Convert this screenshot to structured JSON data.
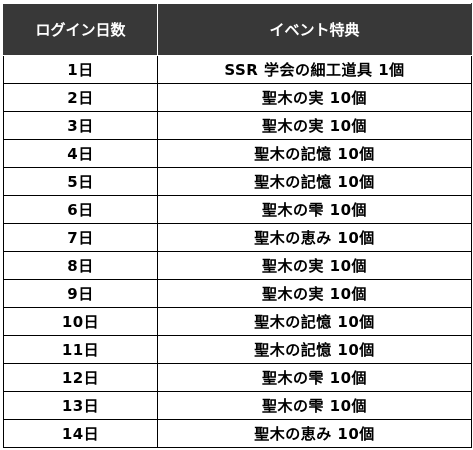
{
  "table": {
    "headers": [
      "ログイン日数",
      "イベント特典"
    ],
    "rows": [
      {
        "day": "1日",
        "reward": "SSR 学会の細工道具 1個"
      },
      {
        "day": "2日",
        "reward": "聖木の実 10個"
      },
      {
        "day": "3日",
        "reward": "聖木の実 10個"
      },
      {
        "day": "4日",
        "reward": "聖木の記憶 10個"
      },
      {
        "day": "5日",
        "reward": "聖木の記憶 10個"
      },
      {
        "day": "6日",
        "reward": "聖木の雫 10個"
      },
      {
        "day": "7日",
        "reward": "聖木の恵み 10個"
      },
      {
        "day": "8日",
        "reward": "聖木の実 10個"
      },
      {
        "day": "9日",
        "reward": "聖木の実 10個"
      },
      {
        "day": "10日",
        "reward": "聖木の記憶 10個"
      },
      {
        "day": "11日",
        "reward": "聖木の記憶 10個"
      },
      {
        "day": "12日",
        "reward": "聖木の雫 10個"
      },
      {
        "day": "13日",
        "reward": "聖木の雫 10個"
      },
      {
        "day": "14日",
        "reward": "聖木の恵み 10個"
      }
    ]
  },
  "colors": {
    "header_bg": "#383838",
    "header_text": "#ffffff",
    "border": "#000000"
  }
}
